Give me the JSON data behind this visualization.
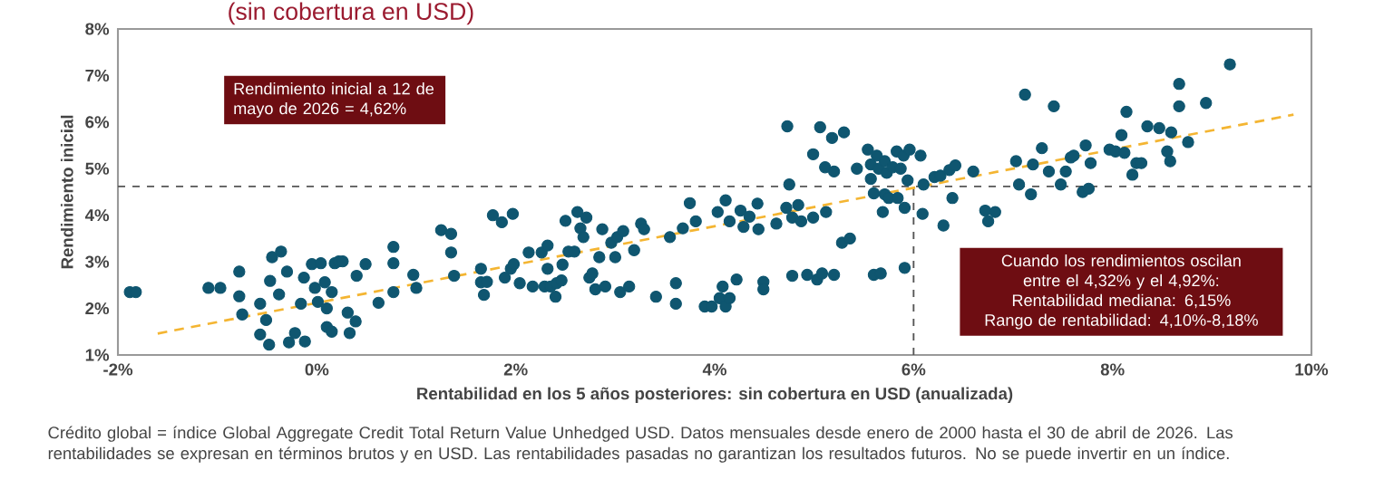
{
  "chart_data": {
    "type": "scatter",
    "title": "(sin cobertura en USD)",
    "xlabel": "Rentabilidad en los 5 años posteriores: sin cobertura en USD (anualizada)",
    "ylabel": "Rendimiento inicial",
    "xlim": [
      -2,
      10
    ],
    "ylim": [
      1,
      8
    ],
    "xticks": [
      {
        "value": -2,
        "label": "-2%"
      },
      {
        "value": 0,
        "label": "0%"
      },
      {
        "value": 2,
        "label": "2%"
      },
      {
        "value": 4,
        "label": "4%"
      },
      {
        "value": 6,
        "label": "6%"
      },
      {
        "value": 8,
        "label": "8%"
      },
      {
        "value": 10,
        "label": "10%"
      }
    ],
    "yticks": [
      {
        "value": 1,
        "label": "1%"
      },
      {
        "value": 2,
        "label": "2%"
      },
      {
        "value": 3,
        "label": "3%"
      },
      {
        "value": 4,
        "label": "4%"
      },
      {
        "value": 5,
        "label": "5%"
      },
      {
        "value": 6,
        "label": "6%"
      },
      {
        "value": 7,
        "label": "7%"
      },
      {
        "value": 8,
        "label": "8%"
      }
    ],
    "marker": "circle",
    "series": [
      {
        "color": "#0f5670",
        "x": [
          -1.88,
          -1.82,
          -1.09,
          -0.97,
          -0.78,
          -0.78,
          -0.75,
          -0.57,
          -0.57,
          -0.51,
          -0.48,
          -0.47,
          -0.45,
          -0.36,
          -0.38,
          -0.3,
          -0.28,
          -0.22,
          -0.16,
          -0.13,
          -0.12,
          -0.05,
          -0.02,
          0.01,
          0.04,
          0.08,
          0.1,
          0.1,
          0.15,
          0.15,
          0.18,
          0.22,
          0.26,
          0.31,
          0.33,
          0.39,
          0.4,
          0.49,
          0.62,
          0.77,
          0.77,
          0.77,
          0.97,
          1.0,
          1.25,
          1.35,
          1.35,
          1.38,
          1.65,
          1.65,
          1.68,
          1.71,
          1.77,
          1.86,
          1.97,
          1.89,
          1.95,
          1.98,
          2.04,
          2.13,
          2.17,
          2.26,
          2.29,
          2.32,
          2.32,
          2.35,
          2.4,
          2.41,
          2.46,
          2.47,
          2.5,
          2.53,
          2.59,
          2.62,
          2.65,
          2.68,
          2.71,
          2.74,
          2.77,
          2.8,
          2.84,
          2.87,
          2.9,
          2.96,
          3.0,
          3.02,
          3.05,
          3.08,
          3.14,
          3.19,
          3.26,
          3.29,
          3.41,
          3.55,
          3.61,
          3.61,
          3.68,
          3.75,
          3.81,
          3.9,
          4.03,
          4.11,
          3.97,
          4.05,
          4.08,
          4.11,
          4.15,
          4.22,
          4.15,
          4.26,
          4.29,
          4.35,
          4.43,
          4.44,
          4.49,
          4.49,
          4.62,
          4.72,
          4.75,
          4.73,
          4.78,
          4.84,
          4.78,
          4.87,
          4.93,
          4.99,
          4.99,
          5.03,
          5.06,
          5.08,
          5.11,
          5.12,
          5.18,
          5.2,
          5.2,
          5.28,
          5.3,
          5.36,
          5.43,
          5.54,
          5.57,
          5.57,
          5.6,
          5.6,
          5.63,
          5.65,
          5.67,
          5.69,
          5.71,
          5.71,
          5.73,
          5.75,
          5.79,
          5.83,
          5.84,
          5.87,
          5.9,
          5.91,
          5.91,
          5.94,
          5.96,
          6.07,
          6.09,
          6.1,
          6.21,
          6.27,
          6.3,
          6.36,
          6.39,
          6.42,
          6.6,
          6.72,
          6.75,
          6.82,
          7.03,
          7.06,
          7.12,
          7.18,
          7.2,
          7.29,
          7.36,
          7.41,
          7.48,
          7.53,
          7.58,
          7.61,
          7.7,
          7.73,
          7.76,
          7.78,
          7.97,
          8.03,
          8.09,
          8.12,
          8.14,
          8.2,
          8.24,
          8.29,
          8.35,
          8.47,
          8.55,
          8.58,
          8.59,
          8.67,
          8.67,
          8.76,
          8.94,
          9.18
        ],
        "values": [
          2.35,
          2.35,
          2.44,
          2.44,
          2.79,
          2.26,
          1.87,
          2.1,
          1.44,
          1.75,
          1.22,
          2.59,
          3.1,
          3.22,
          2.3,
          2.79,
          1.27,
          1.47,
          2.1,
          2.66,
          1.29,
          2.95,
          2.44,
          2.14,
          2.97,
          2.56,
          2.0,
          1.6,
          2.35,
          1.5,
          2.97,
          3.01,
          3.01,
          1.91,
          1.47,
          1.72,
          2.7,
          2.95,
          2.12,
          3.32,
          2.97,
          2.35,
          2.72,
          2.44,
          3.68,
          3.6,
          3.2,
          2.7,
          2.85,
          2.56,
          2.29,
          2.57,
          4.0,
          3.85,
          4.03,
          2.66,
          2.85,
          2.95,
          2.54,
          3.2,
          2.47,
          3.2,
          2.47,
          2.85,
          3.35,
          2.47,
          2.25,
          2.54,
          2.6,
          2.94,
          3.88,
          3.22,
          3.22,
          4.07,
          3.72,
          3.53,
          3.95,
          2.66,
          2.75,
          2.41,
          3.1,
          3.7,
          2.47,
          3.41,
          3.1,
          3.53,
          2.35,
          3.66,
          2.47,
          3.25,
          3.82,
          3.7,
          2.25,
          3.53,
          2.54,
          2.1,
          3.72,
          4.26,
          3.87,
          2.04,
          4.07,
          4.32,
          2.04,
          2.22,
          2.47,
          2.04,
          2.22,
          2.62,
          3.87,
          4.1,
          3.75,
          3.97,
          4.25,
          3.7,
          2.57,
          2.41,
          3.82,
          4.16,
          4.66,
          5.91,
          3.95,
          4.22,
          2.7,
          3.87,
          2.72,
          3.95,
          5.31,
          2.62,
          5.89,
          2.75,
          5.03,
          4.07,
          5.66,
          2.72,
          4.94,
          3.41,
          5.78,
          3.5,
          5.0,
          5.41,
          5.09,
          4.78,
          2.72,
          4.47,
          5.28,
          5.0,
          2.75,
          4.07,
          4.45,
          5.16,
          4.91,
          4.37,
          5.03,
          5.37,
          4.37,
          5.0,
          5.28,
          4.16,
          2.87,
          4.75,
          5.41,
          5.28,
          4.03,
          4.66,
          4.82,
          4.85,
          3.78,
          4.97,
          4.37,
          5.07,
          4.94,
          4.1,
          3.87,
          4.07,
          5.16,
          4.66,
          6.59,
          4.45,
          5.09,
          5.44,
          4.94,
          6.34,
          4.66,
          4.94,
          5.24,
          5.28,
          4.5,
          5.5,
          4.57,
          5.12,
          5.41,
          5.37,
          5.72,
          5.34,
          6.22,
          4.87,
          5.12,
          5.12,
          5.91,
          5.87,
          5.37,
          5.16,
          5.78,
          6.82,
          6.34,
          5.57,
          6.41,
          7.24
        ]
      },
      {
        "type": "line",
        "color": "#f4b532",
        "line_style": "dashed",
        "marker": "none",
        "x": [
          -1.6,
          9.82
        ],
        "values": [
          1.46,
          6.16
        ]
      }
    ],
    "ref_lines": [
      {
        "axis": "y",
        "value": 4.62,
        "color": "#555555",
        "line_style": "dashed"
      },
      {
        "axis": "x",
        "value": 6,
        "color": "#555555",
        "line_style": "dashed"
      }
    ],
    "annotations": [
      "Rendimiento inicial a 12 de mayo de 2026 = 4,62%",
      "Cuando los rendimientos oscilan entre el 4,32% y el 4,92%: Rentabilidad mediana: 6,15% Rango de rentabilidad: 4,10%-8,18%",
      "Crédito global = índice Global Aggregate Credit Total Return Value Unhedged USD. Datos mensuales desde enero de 2000 hasta el 30 de abril de 2026. Las rentabilidades se expresan en términos brutos y en USD. Las rentabilidades pasadas no garantizan los resultados futuros. No se puede invertir en un índice."
    ]
  }
}
